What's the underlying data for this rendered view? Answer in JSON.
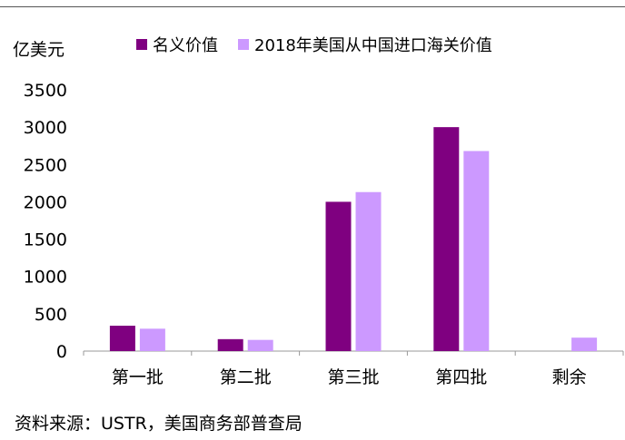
{
  "chart_data": {
    "type": "bar",
    "unit_label": "亿美元",
    "categories": [
      "第一批",
      "第二批",
      "第三批",
      "第四批",
      "剩余"
    ],
    "series": [
      {
        "name": "名义价值",
        "color": "#7f0080",
        "values": [
          340,
          160,
          2000,
          3000,
          null
        ]
      },
      {
        "name": "2018年美国从中国进口海关价值",
        "color": "#cc99ff",
        "values": [
          300,
          150,
          2130,
          2680,
          180
        ]
      }
    ],
    "ylim": [
      0,
      3500
    ],
    "yticks": [
      "0",
      "500",
      "1000",
      "1500",
      "2000",
      "2500",
      "3000",
      "3500"
    ],
    "grid": false,
    "legend_position": "top"
  },
  "source": "资料来源：USTR，美国商务部普查局"
}
